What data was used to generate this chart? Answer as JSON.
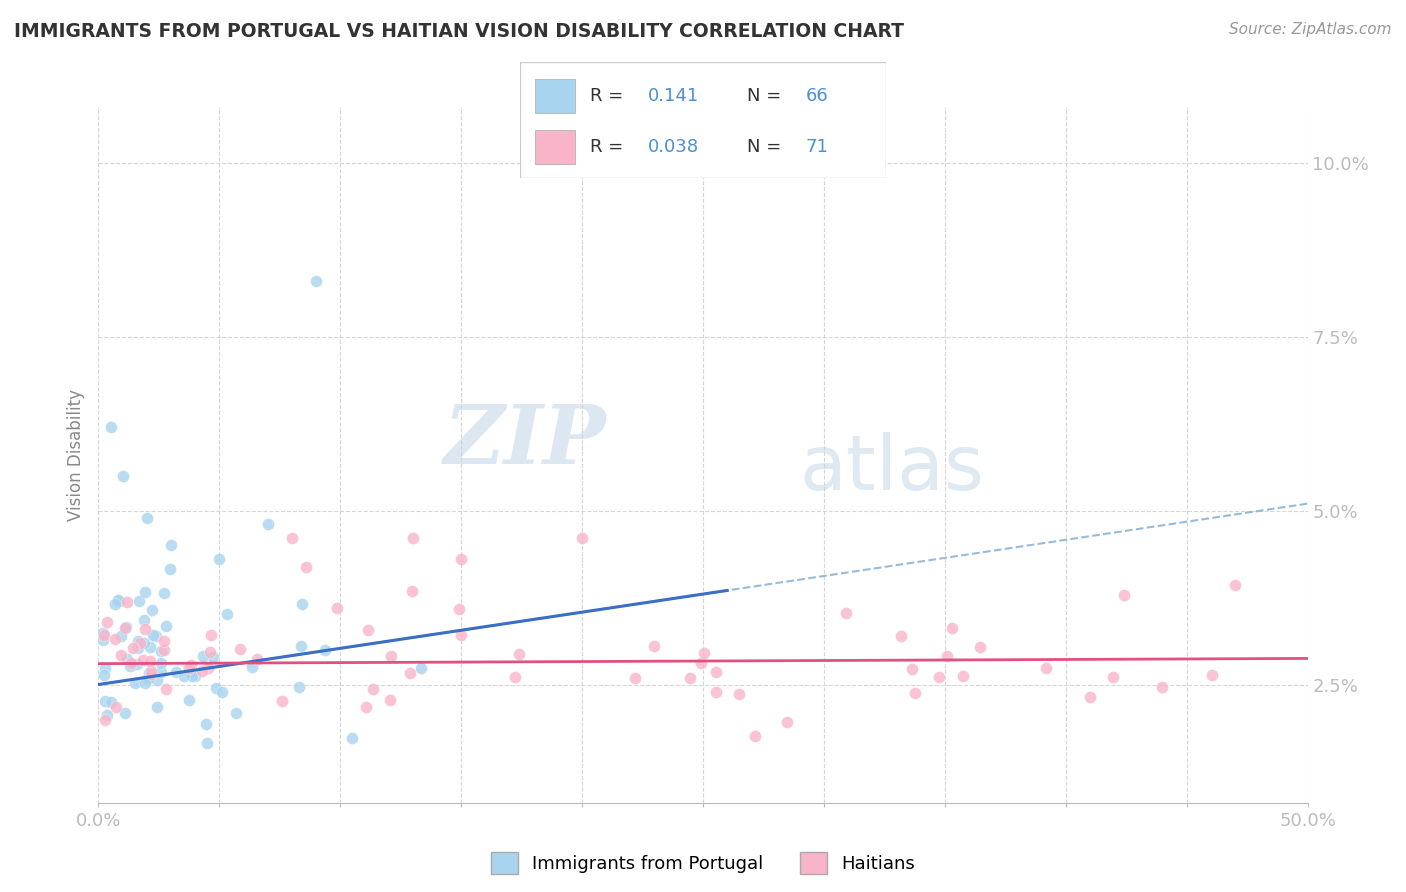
{
  "title": "IMMIGRANTS FROM PORTUGAL VS HAITIAN VISION DISABILITY CORRELATION CHART",
  "source": "Source: ZipAtlas.com",
  "ylabel": "Vision Disability",
  "watermark_zip": "ZIP",
  "watermark_atlas": "atlas",
  "r1": 0.141,
  "n1": 66,
  "r2": 0.038,
  "n2": 71,
  "xlim": [
    0.0,
    0.5
  ],
  "ylim": [
    0.008,
    0.108
  ],
  "yticks": [
    0.025,
    0.05,
    0.075,
    0.1
  ],
  "ytick_labels": [
    "2.5%",
    "5.0%",
    "7.5%",
    "10.0%"
  ],
  "xticks": [
    0.0,
    0.05,
    0.1,
    0.15,
    0.2,
    0.25,
    0.3,
    0.35,
    0.4,
    0.45,
    0.5
  ],
  "xtick_labels": [
    "0.0%",
    "",
    "",
    "",
    "",
    "",
    "",
    "",
    "",
    "",
    "50.0%"
  ],
  "color_blue": "#a8d4f0",
  "color_pink": "#f8b4c8",
  "color_blue_line": "#3a6fc4",
  "color_pink_line": "#e05080",
  "color_blue_dashed": "#8ab4d8",
  "background_color": "#ffffff",
  "grid_color": "#cccccc",
  "title_color": "#333333",
  "source_color": "#999999",
  "axis_color": "#4a90d9",
  "ylabel_color": "#888888"
}
